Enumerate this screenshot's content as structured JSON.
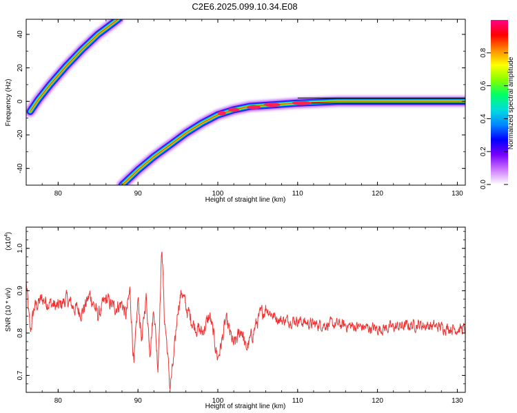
{
  "title": "C2E6.2025.099.10.34.E08",
  "chart_data": [
    {
      "type": "heatmap",
      "xlabel": "Height of straight line (km)",
      "ylabel": "Frequency (Hz)",
      "xlim": [
        76,
        131
      ],
      "ylim": [
        -50,
        49
      ],
      "xticks": [
        "80",
        "90",
        "100",
        "110",
        "120",
        "130"
      ],
      "yticks": [
        "-40",
        "-20",
        "0",
        "20",
        "40"
      ],
      "grid": false,
      "colorbar": {
        "label": "Normalized spectral amplitude",
        "range": [
          0,
          1
        ],
        "ticks": [
          "0.0",
          "0.2",
          "0.4",
          "0.6",
          "0.8"
        ],
        "colors": [
          "#ffffff",
          "#cc77ff",
          "#7700ff",
          "#0000ff",
          "#0088ff",
          "#00dddd",
          "#00ff66",
          "#88ff00",
          "#ffff00",
          "#ff8800",
          "#ff0000",
          "#ff0088"
        ]
      },
      "traces": [
        {
          "x": [
            76.5,
            77.5,
            79.0,
            81.0,
            83.0,
            85.0,
            87.5
          ],
          "y": [
            -6,
            1,
            10,
            21,
            31,
            40,
            49
          ]
        },
        {
          "x": [
            88.0,
            90.0,
            92.0,
            94.0,
            96.0,
            98.0,
            100.0,
            102.0,
            104.0,
            107.0,
            110.0,
            115.0,
            120.0,
            131.0
          ],
          "y": [
            -50,
            -41,
            -33,
            -26,
            -19,
            -13,
            -8,
            -5,
            -3,
            -2,
            -1,
            0,
            0,
            0
          ]
        }
      ]
    },
    {
      "type": "line",
      "xlabel": "Height of straight line (km)",
      "ylabel": "SNR (10 * v/v)",
      "yscale_label": "(x10",
      "yscale_exp": "4",
      "xlim": [
        76,
        131
      ],
      "ylim": [
        0.66,
        1.05
      ],
      "xticks": [
        "80",
        "90",
        "100",
        "110",
        "120",
        "130"
      ],
      "yticks": [
        "0.7",
        "0.8",
        "0.9",
        "1.0"
      ],
      "grid": false,
      "color": "#ee3333",
      "series": [
        {
          "x": [
            76.0,
            76.5,
            77.0,
            78.0,
            79.0,
            80.0,
            81.0,
            82.0,
            83.0,
            84.0,
            85.0,
            86.0,
            87.0,
            88.0,
            88.5,
            89.0,
            89.5,
            90.0,
            90.5,
            91.0,
            91.5,
            92.0,
            92.5,
            93.0,
            93.3,
            93.6,
            94.0,
            94.5,
            95.0,
            95.5,
            96.0,
            97.0,
            98.0,
            99.0,
            100.0,
            100.5,
            101.0,
            102.0,
            103.0,
            103.5,
            104.0,
            105.0,
            106.0,
            107.0,
            108.0,
            110.0,
            112.0,
            115.0,
            120.0,
            125.0,
            130.0,
            131.0
          ],
          "y": [
            0.92,
            0.8,
            0.86,
            0.88,
            0.87,
            0.86,
            0.88,
            0.86,
            0.85,
            0.89,
            0.84,
            0.88,
            0.86,
            0.87,
            0.84,
            0.9,
            0.72,
            0.88,
            0.78,
            0.89,
            0.76,
            0.86,
            0.72,
            1.01,
            0.84,
            0.78,
            0.67,
            0.74,
            0.86,
            0.9,
            0.86,
            0.82,
            0.8,
            0.84,
            0.74,
            0.78,
            0.83,
            0.77,
            0.81,
            0.76,
            0.78,
            0.83,
            0.86,
            0.84,
            0.83,
            0.83,
            0.82,
            0.82,
            0.81,
            0.82,
            0.81,
            0.81
          ]
        }
      ]
    }
  ]
}
